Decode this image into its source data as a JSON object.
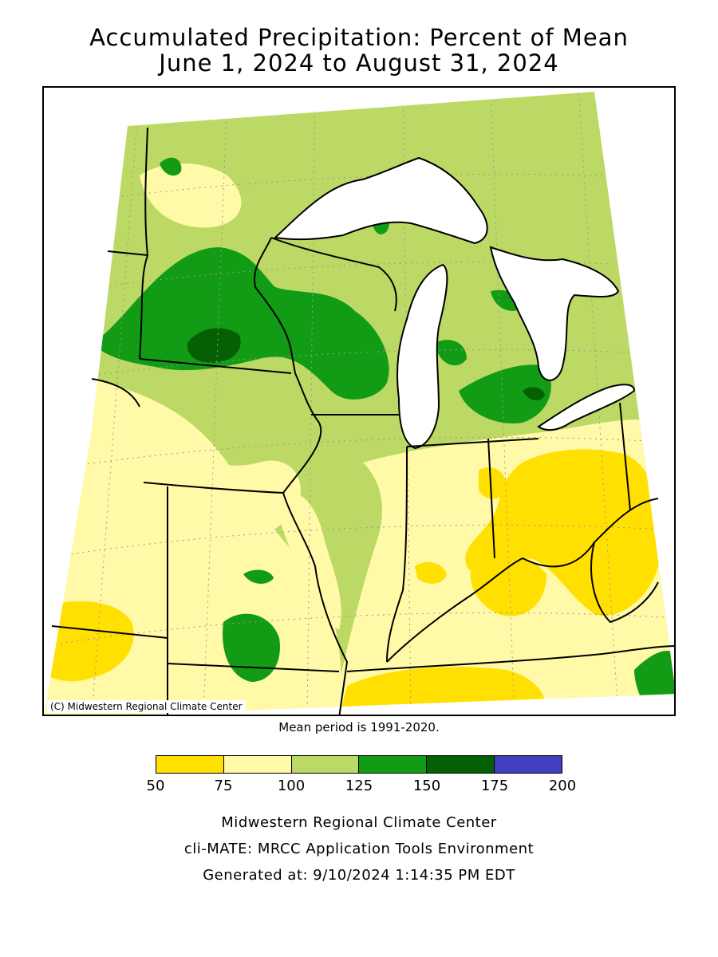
{
  "header": {
    "title_line1": "Accumulated Precipitation: Percent of Mean",
    "title_line2": "June 1, 2024 to August 31, 2024"
  },
  "map": {
    "copyright": "(C) Midwestern Regional Climate Center",
    "mean_period": "Mean period is 1991-2020.",
    "category_colors": {
      "50_75": "#ffe000",
      "75_100": "#fff9a8",
      "100_125": "#bcd965",
      "125_150": "#129c16",
      "150_175": "#056004",
      "175_200": "#4040c0"
    },
    "lake_color": "#ffffff"
  },
  "legend": {
    "colors": [
      "#ffe000",
      "#fff9a8",
      "#bcd965",
      "#129c16",
      "#056004",
      "#4040c0"
    ],
    "ticks": [
      "50",
      "75",
      "100",
      "125",
      "150",
      "175",
      "200"
    ]
  },
  "footer": {
    "line1": "Midwestern Regional Climate Center",
    "line2": "cli-MATE: MRCC Application Tools Environment",
    "line3": "Generated at: 9/10/2024 1:14:35 PM EDT"
  }
}
